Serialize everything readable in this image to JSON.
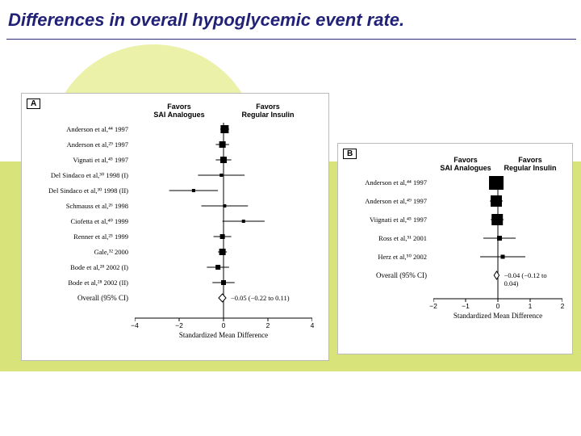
{
  "title": {
    "text": "Differences in overall hypoglycemic event rate.",
    "color": "#212178"
  },
  "background": {
    "green": "#d8e37a",
    "arc": "#e9ef9e"
  },
  "colors": {
    "marker": "#000000",
    "line": "#000000",
    "axis": "#000000",
    "diamond_fill": "#ffffff",
    "diamond_stroke": "#000000",
    "text": "#000000",
    "panel_border": "#bbbbbb"
  },
  "panelA": {
    "label": "A",
    "header_left": "Favors\nSAI Analogues",
    "header_right": "Favors\nRegular Insulin",
    "studies": [
      {
        "name": "Anderson et al,⁴⁴ 1997",
        "est": 0.05,
        "lo": -0.15,
        "hi": 0.25,
        "size": 10
      },
      {
        "name": "Anderson et al,²⁹ 1997",
        "est": -0.05,
        "lo": -0.35,
        "hi": 0.25,
        "size": 8
      },
      {
        "name": "Vignati et al,⁴⁵ 1997",
        "est": 0.0,
        "lo": -0.35,
        "hi": 0.35,
        "size": 8
      },
      {
        "name": "Del Sindaco et al,³⁰ 1998 (I)",
        "est": -0.1,
        "lo": -1.15,
        "hi": 0.95,
        "size": 4
      },
      {
        "name": "Del Sindaco et al,³⁰ 1998 (II)",
        "est": -1.35,
        "lo": -2.45,
        "hi": -0.25,
        "size": 4
      },
      {
        "name": "Schmauss et al,²⁶ 1998",
        "est": 0.05,
        "lo": -1.0,
        "hi": 1.1,
        "size": 4
      },
      {
        "name": "Ciofetta et al,⁴⁰ 1999",
        "est": 0.9,
        "lo": -0.05,
        "hi": 1.85,
        "size": 4
      },
      {
        "name": "Renner et al,²⁵ 1999",
        "est": -0.05,
        "lo": -0.45,
        "hi": 0.35,
        "size": 6
      },
      {
        "name": "Gale,³² 2000",
        "est": -0.05,
        "lo": -0.25,
        "hi": 0.15,
        "size": 8
      },
      {
        "name": "Bode et al,²⁸ 2002 (I)",
        "est": -0.25,
        "lo": -0.75,
        "hi": 0.25,
        "size": 6
      },
      {
        "name": "Bode et al,²⁸ 2002 (II)",
        "est": 0.0,
        "lo": -0.5,
        "hi": 0.5,
        "size": 6
      }
    ],
    "overall": {
      "label": "Overall (95% CI)",
      "est": -0.05,
      "lo": -0.22,
      "hi": 0.11,
      "text": "−0.05 (−0.22 to 0.11)"
    },
    "axis": {
      "min": -4,
      "max": 4,
      "ticks": [
        -4,
        -2,
        0,
        2,
        4
      ],
      "label": "Standardized Mean Difference"
    }
  },
  "panelB": {
    "label": "B",
    "header_left": "Favors\nSAI Analogues",
    "header_right": "Favors\nRegular Insulin",
    "studies": [
      {
        "name": "Anderson et al,⁴⁴ 1997",
        "est": -0.05,
        "lo": -0.2,
        "hi": 0.1,
        "size": 18
      },
      {
        "name": "Anderson et al,⁴⁹ 1997",
        "est": -0.05,
        "lo": -0.25,
        "hi": 0.15,
        "size": 14
      },
      {
        "name": "Viignati et al,⁴⁵ 1997",
        "est": -0.02,
        "lo": -0.22,
        "hi": 0.18,
        "size": 14
      },
      {
        "name": "Ross et al,⁵¹ 2001",
        "est": 0.05,
        "lo": -0.45,
        "hi": 0.55,
        "size": 6
      },
      {
        "name": "Herz et al,⁵⁰ 2002",
        "est": 0.15,
        "lo": -0.55,
        "hi": 0.85,
        "size": 5
      }
    ],
    "overall": {
      "label": "Overall (95% CI)",
      "est": -0.04,
      "lo": -0.12,
      "hi": 0.04,
      "text": "−0.04 (−0.12 to 0.04)"
    },
    "axis": {
      "min": -2,
      "max": 2,
      "ticks": [
        -2,
        -1,
        0,
        1,
        2
      ],
      "label": "Standardized Mean Difference"
    }
  }
}
